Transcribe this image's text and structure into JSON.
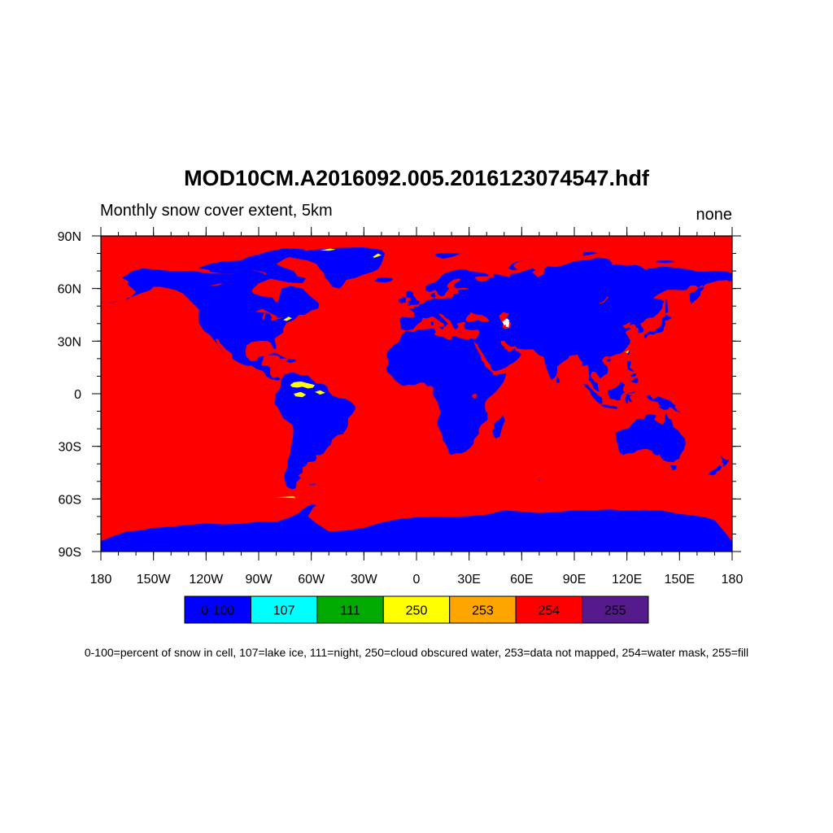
{
  "title": "MOD10CM.A2016092.005.2016123074547.hdf",
  "subtitle_left": "Monthly snow cover extent, 5km",
  "subtitle_right": "none",
  "map": {
    "projection": "cylindrical-equidistant",
    "lon_range": [
      -180,
      180
    ],
    "lat_range": [
      -90,
      90
    ],
    "background_category": "254",
    "land_category": "0-100",
    "lon_ticks": [
      {
        "value": -180,
        "label": "180"
      },
      {
        "value": -150,
        "label": "150W"
      },
      {
        "value": -120,
        "label": "120W"
      },
      {
        "value": -90,
        "label": "90W"
      },
      {
        "value": -60,
        "label": "60W"
      },
      {
        "value": -30,
        "label": "30W"
      },
      {
        "value": 0,
        "label": "0"
      },
      {
        "value": 30,
        "label": "30E"
      },
      {
        "value": 60,
        "label": "60E"
      },
      {
        "value": 90,
        "label": "90E"
      },
      {
        "value": 120,
        "label": "120E"
      },
      {
        "value": 150,
        "label": "150E"
      },
      {
        "value": 180,
        "label": "180"
      }
    ],
    "lat_ticks": [
      {
        "value": 90,
        "label": "90N"
      },
      {
        "value": 60,
        "label": "60N"
      },
      {
        "value": 30,
        "label": "30N"
      },
      {
        "value": 0,
        "label": "0"
      },
      {
        "value": -30,
        "label": "30S"
      },
      {
        "value": -60,
        "label": "60S"
      },
      {
        "value": -90,
        "label": "90S"
      }
    ]
  },
  "legend": [
    {
      "label": "0-100",
      "color": "#0000ff"
    },
    {
      "label": "107",
      "color": "#00ffff"
    },
    {
      "label": "111",
      "color": "#00aa00"
    },
    {
      "label": "250",
      "color": "#ffff00"
    },
    {
      "label": "253",
      "color": "#ffa500"
    },
    {
      "label": "254",
      "color": "#ff0000"
    },
    {
      "label": "255",
      "color": "#551a8b"
    }
  ],
  "footnote": "0-100=percent of snow in cell, 107=lake ice, 111=night, 250=cloud obscured water, 253=data not mapped, 254=water mask, 255=fill"
}
